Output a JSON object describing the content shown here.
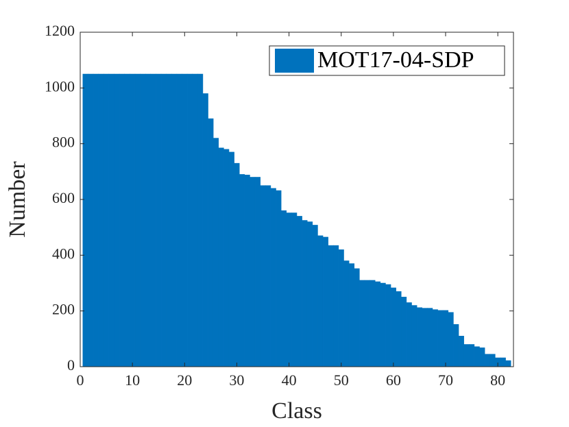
{
  "chart_data": {
    "type": "bar",
    "x_label": "Class",
    "y_label": "Number",
    "x": [
      1,
      2,
      3,
      4,
      5,
      6,
      7,
      8,
      9,
      10,
      11,
      12,
      13,
      14,
      15,
      16,
      17,
      18,
      19,
      20,
      21,
      22,
      23,
      24,
      25,
      26,
      27,
      28,
      29,
      30,
      31,
      32,
      33,
      34,
      35,
      36,
      37,
      38,
      39,
      40,
      41,
      42,
      43,
      44,
      45,
      46,
      47,
      48,
      49,
      50,
      51,
      52,
      53,
      54,
      55,
      56,
      57,
      58,
      59,
      60,
      61,
      62,
      63,
      64,
      65,
      66,
      67,
      68,
      69,
      70,
      71,
      72,
      73,
      74,
      75,
      76,
      77,
      78,
      79,
      80,
      81,
      82
    ],
    "series": [
      {
        "name": "MOT17-04-SDP",
        "color": "#0072bd",
        "values": [
          1050,
          1050,
          1050,
          1050,
          1050,
          1050,
          1050,
          1050,
          1050,
          1050,
          1050,
          1050,
          1050,
          1050,
          1050,
          1050,
          1050,
          1050,
          1050,
          1050,
          1050,
          1050,
          1050,
          980,
          890,
          820,
          785,
          780,
          770,
          730,
          690,
          688,
          680,
          680,
          650,
          650,
          640,
          632,
          560,
          552,
          552,
          540,
          525,
          520,
          508,
          470,
          465,
          435,
          435,
          420,
          380,
          370,
          352,
          310,
          310,
          310,
          305,
          300,
          295,
          283,
          270,
          250,
          230,
          220,
          212,
          210,
          210,
          205,
          202,
          202,
          195,
          152,
          110,
          80,
          80,
          72,
          68,
          45,
          45,
          32,
          32,
          22
        ]
      }
    ],
    "xlim": [
      0,
      83
    ],
    "ylim": [
      0,
      1200
    ],
    "xticks": [
      0,
      10,
      20,
      30,
      40,
      50,
      60,
      70,
      80
    ],
    "yticks": [
      0,
      200,
      400,
      600,
      800,
      1000,
      1200
    ],
    "legend": "top-right"
  }
}
